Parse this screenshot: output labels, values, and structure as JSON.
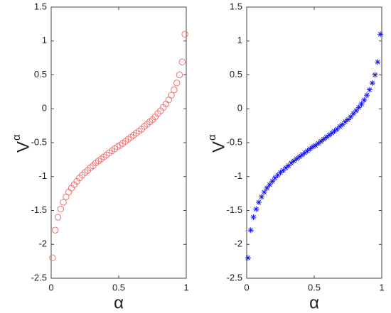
{
  "chart_data": [
    {
      "type": "scatter",
      "marker": "circle",
      "color": "#f07070",
      "ylabel": "V",
      "ylabel_sup": "α",
      "xlabel": "α",
      "xlim": [
        0,
        1
      ],
      "xticks": [
        0,
        0.5,
        1
      ],
      "ylim": [
        -2.5,
        1.5
      ],
      "yticks": [
        -2.5,
        -2,
        -1.5,
        -1,
        -0.5,
        0,
        0.5,
        1,
        1.5
      ],
      "x": [
        0.01,
        0.03,
        0.05,
        0.07,
        0.09,
        0.11,
        0.13,
        0.15,
        0.17,
        0.19,
        0.21,
        0.23,
        0.25,
        0.27,
        0.29,
        0.31,
        0.33,
        0.35,
        0.37,
        0.39,
        0.41,
        0.43,
        0.45,
        0.47,
        0.49,
        0.51,
        0.53,
        0.55,
        0.57,
        0.59,
        0.61,
        0.63,
        0.65,
        0.67,
        0.69,
        0.71,
        0.73,
        0.75,
        0.77,
        0.79,
        0.81,
        0.83,
        0.85,
        0.87,
        0.89,
        0.91,
        0.93,
        0.95,
        0.97,
        0.99
      ],
      "values": [
        -2.2,
        -1.79,
        -1.6,
        -1.48,
        -1.38,
        -1.3,
        -1.23,
        -1.17,
        -1.12,
        -1.07,
        -1.02,
        -0.98,
        -0.94,
        -0.91,
        -0.87,
        -0.84,
        -0.8,
        -0.77,
        -0.74,
        -0.71,
        -0.68,
        -0.65,
        -0.62,
        -0.59,
        -0.56,
        -0.54,
        -0.51,
        -0.48,
        -0.45,
        -0.42,
        -0.39,
        -0.36,
        -0.33,
        -0.3,
        -0.26,
        -0.23,
        -0.19,
        -0.16,
        -0.12,
        -0.07,
        -0.03,
        0.02,
        0.07,
        0.13,
        0.2,
        0.28,
        0.38,
        0.5,
        0.69,
        1.1
      ]
    },
    {
      "type": "scatter",
      "marker": "asterisk",
      "color": "#1a1aee",
      "ylabel": "V",
      "ylabel_sup": "α",
      "xlabel": "α",
      "xlim": [
        0,
        1
      ],
      "xticks": [
        0,
        0.5,
        1
      ],
      "ylim": [
        -2.5,
        1.5
      ],
      "yticks": [
        -2.5,
        -2,
        -1.5,
        -1,
        -0.5,
        0,
        0.5,
        1,
        1.5
      ],
      "x": [
        0.01,
        0.03,
        0.05,
        0.07,
        0.09,
        0.11,
        0.13,
        0.15,
        0.17,
        0.19,
        0.21,
        0.23,
        0.25,
        0.27,
        0.29,
        0.31,
        0.33,
        0.35,
        0.37,
        0.39,
        0.41,
        0.43,
        0.45,
        0.47,
        0.49,
        0.51,
        0.53,
        0.55,
        0.57,
        0.59,
        0.61,
        0.63,
        0.65,
        0.67,
        0.69,
        0.71,
        0.73,
        0.75,
        0.77,
        0.79,
        0.81,
        0.83,
        0.85,
        0.87,
        0.89,
        0.91,
        0.93,
        0.95,
        0.97,
        0.99
      ],
      "values": [
        -2.2,
        -1.79,
        -1.6,
        -1.48,
        -1.38,
        -1.3,
        -1.23,
        -1.17,
        -1.12,
        -1.07,
        -1.02,
        -0.98,
        -0.94,
        -0.91,
        -0.87,
        -0.84,
        -0.8,
        -0.77,
        -0.74,
        -0.71,
        -0.68,
        -0.65,
        -0.62,
        -0.59,
        -0.56,
        -0.54,
        -0.51,
        -0.48,
        -0.45,
        -0.42,
        -0.39,
        -0.36,
        -0.33,
        -0.3,
        -0.26,
        -0.23,
        -0.19,
        -0.16,
        -0.12,
        -0.07,
        -0.03,
        0.02,
        0.07,
        0.13,
        0.2,
        0.28,
        0.38,
        0.5,
        0.69,
        1.1
      ]
    }
  ]
}
